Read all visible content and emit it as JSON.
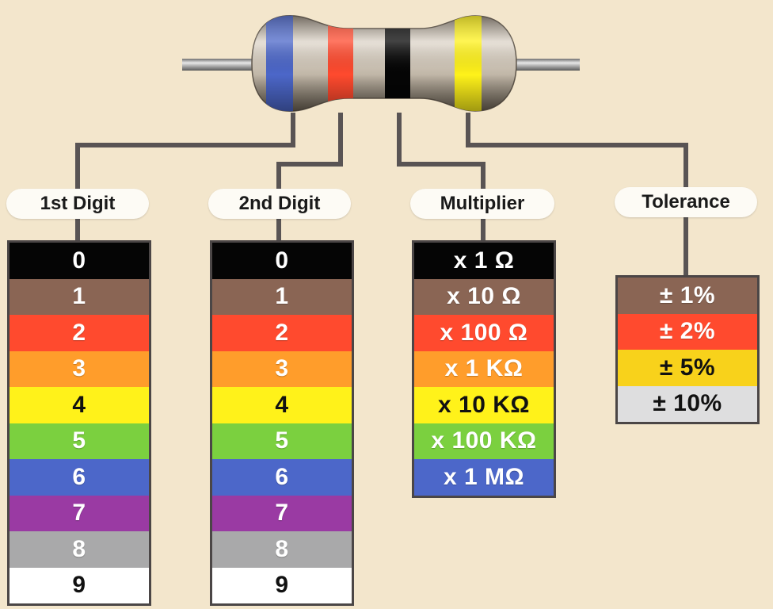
{
  "colors": {
    "background": "#f3e6cc",
    "black": "#050505",
    "brown": "#8a6554",
    "red": "#ff4a2e",
    "orange": "#ff9d2b",
    "yellow": "#fff21a",
    "green": "#7bd03f",
    "blue": "#4c67c9",
    "violet": "#9a3aa3",
    "grey": "#a9a9aa",
    "white": "#ffffff",
    "gold": "#f8d21b",
    "silver": "#dededf"
  },
  "resistor": {
    "band_colors": [
      "blue",
      "red",
      "black",
      "yellow"
    ]
  },
  "columns": [
    {
      "id": "first-digit",
      "header": "1st Digit",
      "rows": [
        {
          "label": "0",
          "color": "black",
          "text": "light"
        },
        {
          "label": "1",
          "color": "brown",
          "text": "light"
        },
        {
          "label": "2",
          "color": "red",
          "text": "light"
        },
        {
          "label": "3",
          "color": "orange",
          "text": "light"
        },
        {
          "label": "4",
          "color": "yellow",
          "text": "dark"
        },
        {
          "label": "5",
          "color": "green",
          "text": "light"
        },
        {
          "label": "6",
          "color": "blue",
          "text": "light"
        },
        {
          "label": "7",
          "color": "violet",
          "text": "light"
        },
        {
          "label": "8",
          "color": "grey",
          "text": "light"
        },
        {
          "label": "9",
          "color": "white",
          "text": "dark"
        }
      ]
    },
    {
      "id": "second-digit",
      "header": "2nd Digit",
      "rows": [
        {
          "label": "0",
          "color": "black",
          "text": "light"
        },
        {
          "label": "1",
          "color": "brown",
          "text": "light"
        },
        {
          "label": "2",
          "color": "red",
          "text": "light"
        },
        {
          "label": "3",
          "color": "orange",
          "text": "light"
        },
        {
          "label": "4",
          "color": "yellow",
          "text": "dark"
        },
        {
          "label": "5",
          "color": "green",
          "text": "light"
        },
        {
          "label": "6",
          "color": "blue",
          "text": "light"
        },
        {
          "label": "7",
          "color": "violet",
          "text": "light"
        },
        {
          "label": "8",
          "color": "grey",
          "text": "light"
        },
        {
          "label": "9",
          "color": "white",
          "text": "dark"
        }
      ]
    },
    {
      "id": "multiplier",
      "header": "Multiplier",
      "rows": [
        {
          "label": "x 1 Ω",
          "color": "black",
          "text": "light"
        },
        {
          "label": "x 10 Ω",
          "color": "brown",
          "text": "light"
        },
        {
          "label": "x 100 Ω",
          "color": "red",
          "text": "light"
        },
        {
          "label": "x 1 KΩ",
          "color": "orange",
          "text": "light"
        },
        {
          "label": "x 10 KΩ",
          "color": "yellow",
          "text": "dark"
        },
        {
          "label": "x 100 KΩ",
          "color": "green",
          "text": "light"
        },
        {
          "label": "x 1 MΩ",
          "color": "blue",
          "text": "light"
        }
      ]
    },
    {
      "id": "tolerance",
      "header": "Tolerance",
      "rows": [
        {
          "label": "± 1%",
          "color": "brown",
          "text": "light"
        },
        {
          "label": "± 2%",
          "color": "red",
          "text": "light"
        },
        {
          "label": "± 5%",
          "color": "gold",
          "text": "dark"
        },
        {
          "label": "± 10%",
          "color": "silver",
          "text": "dark"
        }
      ]
    }
  ]
}
